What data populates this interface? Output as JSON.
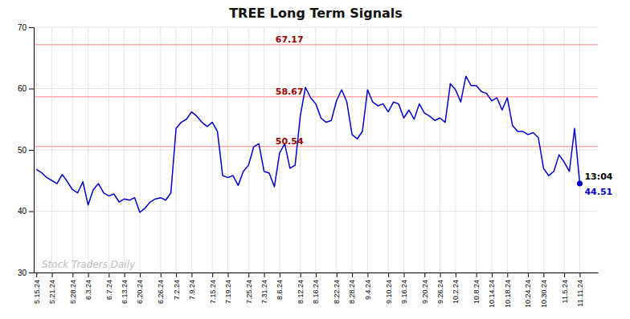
{
  "chart_data": {
    "type": "line",
    "title": "TREE Long Term Signals",
    "categories": [
      "5.15.24",
      null,
      null,
      "5.21.24",
      null,
      null,
      null,
      "5.28.24",
      null,
      null,
      "6.3.24",
      null,
      null,
      null,
      "6.7.24",
      null,
      null,
      "6.13.24",
      null,
      null,
      "6.20.24",
      null,
      null,
      null,
      "6.26.24",
      null,
      null,
      "7.2.24",
      null,
      null,
      "7.9.24",
      null,
      null,
      null,
      "7.15.24",
      null,
      null,
      "7.19.24",
      null,
      null,
      null,
      "7.25.24",
      null,
      null,
      "7.31.24",
      null,
      null,
      "8.6.24",
      null,
      null,
      null,
      "8.12.24",
      null,
      null,
      "8.16.24",
      null,
      null,
      null,
      "8.22.24",
      null,
      null,
      "8.28.24",
      null,
      null,
      "9.4.24",
      null,
      null,
      null,
      "9.10.24",
      null,
      null,
      "9.16.24",
      null,
      null,
      null,
      "9.20.24",
      null,
      null,
      "9.26.24",
      null,
      null,
      "10.2.24",
      null,
      null,
      null,
      "10.8.24",
      null,
      null,
      "10.14.24",
      null,
      null,
      "10.18.24",
      null,
      null,
      null,
      "10.24.24",
      null,
      null,
      "10.30.24",
      null,
      null,
      null,
      "11.5.24",
      null,
      null,
      "11.11.24"
    ],
    "values": [
      46.8,
      46.3,
      45.5,
      45.0,
      44.5,
      46.0,
      44.8,
      43.5,
      43.0,
      44.8,
      41.0,
      43.5,
      44.5,
      43.0,
      42.5,
      42.8,
      41.5,
      42.0,
      41.8,
      42.2,
      39.8,
      40.5,
      41.5,
      42.0,
      42.2,
      41.8,
      43.0,
      53.5,
      54.5,
      55.0,
      56.2,
      55.5,
      54.5,
      53.8,
      54.5,
      53.0,
      45.8,
      45.5,
      45.8,
      44.2,
      46.5,
      47.5,
      50.5,
      51.0,
      46.5,
      46.2,
      44.0,
      49.5,
      51.0,
      47.0,
      47.5,
      55.5,
      60.2,
      58.5,
      57.5,
      55.2,
      54.5,
      54.8,
      58.0,
      59.8,
      57.8,
      52.5,
      51.8,
      53.0,
      59.8,
      57.8,
      57.2,
      57.5,
      56.2,
      57.8,
      57.5,
      55.2,
      56.5,
      55.0,
      57.5,
      56.0,
      55.5,
      54.8,
      55.2,
      54.5,
      60.8,
      59.8,
      57.8,
      62.0,
      60.5,
      60.5,
      59.5,
      59.2,
      58.0,
      58.5,
      56.5,
      58.5,
      54.0,
      53.0,
      53.0,
      52.5,
      52.8,
      52.0,
      47.0,
      45.8,
      46.5,
      49.2,
      48.0,
      46.5,
      53.5,
      44.51
    ],
    "color": "#0000cc",
    "ylim": [
      30,
      70
    ],
    "yticks": [
      30,
      40,
      50,
      60,
      70
    ],
    "grid": true,
    "reference_lines": [
      {
        "value": 67.17,
        "label": "67.17",
        "color": "#ffaaaa",
        "label_color": "#990000"
      },
      {
        "value": 58.67,
        "label": "58.67",
        "color": "#ffaaaa",
        "label_color": "#990000"
      },
      {
        "value": 50.54,
        "label": "50.54",
        "color": "#ffaaaa",
        "label_color": "#990000"
      }
    ],
    "last_point": {
      "marker": "circle",
      "time_label": "13:04",
      "value_label": "44.51"
    },
    "watermark": "Stock Traders Daily"
  }
}
